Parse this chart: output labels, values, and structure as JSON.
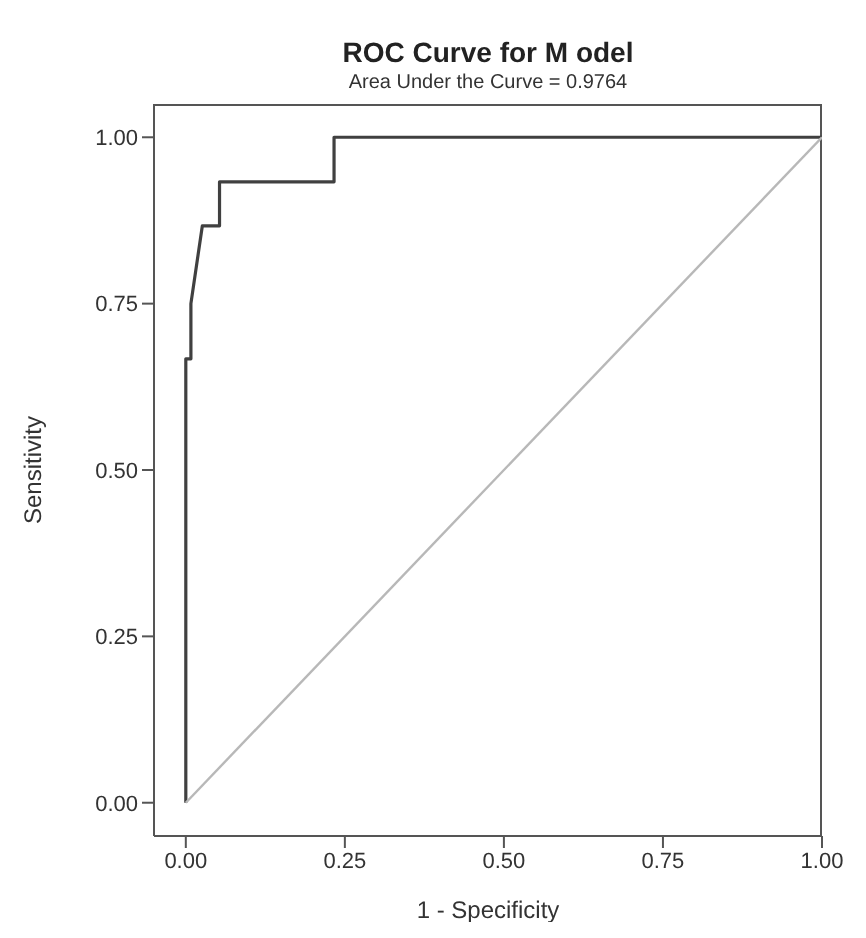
{
  "chart_data": {
    "type": "line",
    "title": "ROC Curve for M odel",
    "subtitle": "Area Under the Curve = 0.9764",
    "xlabel": "1 - Specificity",
    "ylabel": "Sensitivity",
    "series": [
      {
        "color": "#404040",
        "x": [
          0,
          0,
          0.008,
          0.008,
          0.026,
          0.053,
          0.053,
          0.072,
          0.233,
          0.233,
          1
        ],
        "values": [
          0,
          0.667,
          0.667,
          0.75,
          0.867,
          0.867,
          0.933,
          0.933,
          0.933,
          1,
          1
        ]
      },
      {
        "color": "#b8b8b8",
        "x": [
          0,
          1
        ],
        "values": [
          0,
          1
        ]
      }
    ],
    "xlim": [
      -0.05,
      1.0
    ],
    "ylim": [
      -0.05,
      1.05
    ],
    "xticks": [
      {
        "value": 0,
        "label": "0.00"
      },
      {
        "value": 0.25,
        "label": "0.25"
      },
      {
        "value": 0.5,
        "label": "0.50"
      },
      {
        "value": 0.75,
        "label": "0.75"
      },
      {
        "value": 1,
        "label": "1.00"
      }
    ],
    "yticks": [
      {
        "value": 0,
        "label": "0.00"
      },
      {
        "value": 0.25,
        "label": "0.25"
      },
      {
        "value": 0.5,
        "label": "0.50"
      },
      {
        "value": 0.75,
        "label": "0.75"
      },
      {
        "value": 1,
        "label": "1.00"
      }
    ],
    "grid": false,
    "legend": false,
    "marker": "none",
    "line_style": "solid"
  }
}
